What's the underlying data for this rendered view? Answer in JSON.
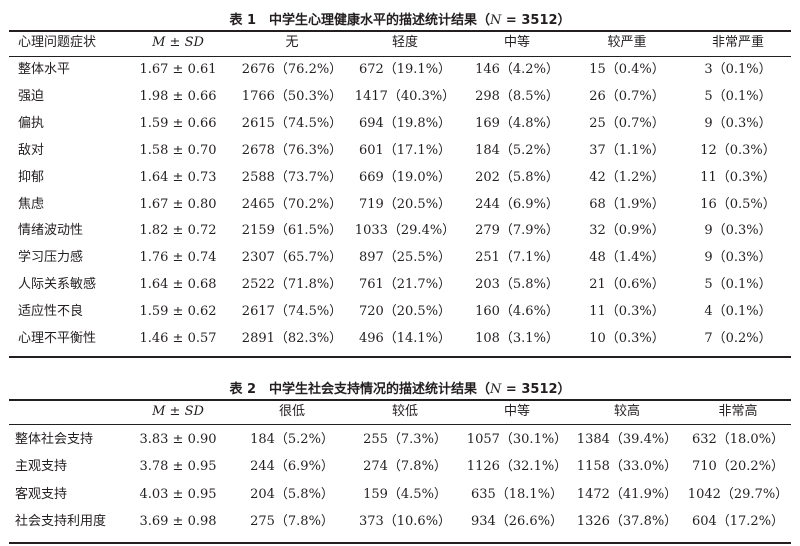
{
  "table1": {
    "caption_prefix": "表 1　中学生心理健康水平的描述统计结果（",
    "caption_n": "N",
    "caption_suffix": " = 3512）",
    "headers": [
      "心理问题症状",
      "M ± SD",
      "无",
      "轻度",
      "中等",
      "较严重",
      "非常严重"
    ],
    "rows": [
      [
        "整体水平",
        "1.67 ± 0.61",
        "2676（76.2%）",
        "672（19.1%）",
        "146（4.2%）",
        "15（0.4%）",
        "3（0.1%）"
      ],
      [
        "强迫",
        "1.98 ± 0.66",
        "1766（50.3%）",
        "1417（40.3%）",
        "298（8.5%）",
        "26（0.7%）",
        "5（0.1%）"
      ],
      [
        "偏执",
        "1.59 ± 0.66",
        "2615（74.5%）",
        "694（19.8%）",
        "169（4.8%）",
        "25（0.7%）",
        "9（0.3%）"
      ],
      [
        "敌对",
        "1.58 ± 0.70",
        "2678（76.3%）",
        "601（17.1%）",
        "184（5.2%）",
        "37（1.1%）",
        "12（0.3%）"
      ],
      [
        "抑郁",
        "1.64 ± 0.73",
        "2588（73.7%）",
        "669（19.0%）",
        "202（5.8%）",
        "42（1.2%）",
        "11（0.3%）"
      ],
      [
        "焦虑",
        "1.67 ± 0.80",
        "2465（70.2%）",
        "719（20.5%）",
        "244（6.9%）",
        "68（1.9%）",
        "16（0.5%）"
      ],
      [
        "情绪波动性",
        "1.82 ± 0.72",
        "2159（61.5%）",
        "1033（29.4%）",
        "279（7.9%）",
        "32（0.9%）",
        "9（0.3%）"
      ],
      [
        "学习压力感",
        "1.76 ± 0.74",
        "2307（65.7%）",
        "897（25.5%）",
        "251（7.1%）",
        "48（1.4%）",
        "9（0.3%）"
      ],
      [
        "人际关系敏感",
        "1.64 ± 0.68",
        "2522（71.8%）",
        "761（21.7%）",
        "203（5.8%）",
        "21（0.6%）",
        "5（0.1%）"
      ],
      [
        "适应性不良",
        "1.59 ± 0.62",
        "2617（74.5%）",
        "720（20.5%）",
        "160（4.6%）",
        "11（0.3%）",
        "4（0.1%）"
      ],
      [
        "心理不平衡性",
        "1.46 ± 0.57",
        "2891（82.3%）",
        "496（14.1%）",
        "108（3.1%）",
        "10（0.3%）",
        "7（0.2%）"
      ]
    ]
  },
  "table2": {
    "caption_prefix": "表 2　中学生社会支持情况的描述统计结果（",
    "caption_n": "N",
    "caption_suffix": " = 3512）",
    "headers": [
      "",
      "M ± SD",
      "很低",
      "较低",
      "中等",
      "较高",
      "非常高"
    ],
    "rows": [
      [
        "整体社会支持",
        "3.83 ± 0.90",
        "184（5.2%）",
        "255（7.3%）",
        "1057（30.1%）",
        "1384（39.4%）",
        "632（18.0%）"
      ],
      [
        "主观支持",
        "3.78 ± 0.95",
        "244（6.9%）",
        "274（7.8%）",
        "1126（32.1%）",
        "1158（33.0%）",
        "710（20.2%）"
      ],
      [
        "客观支持",
        "4.03 ± 0.95",
        "204（5.8%）",
        "159（4.5%）",
        "635（18.1%）",
        "1472（41.9%）",
        "1042（29.7%）"
      ],
      [
        "社会支持利用度",
        "3.69 ± 0.98",
        "275（7.8%）",
        "373（10.6%）",
        "934（26.6%）",
        "1326（37.8%）",
        "604（17.2%）"
      ]
    ]
  }
}
